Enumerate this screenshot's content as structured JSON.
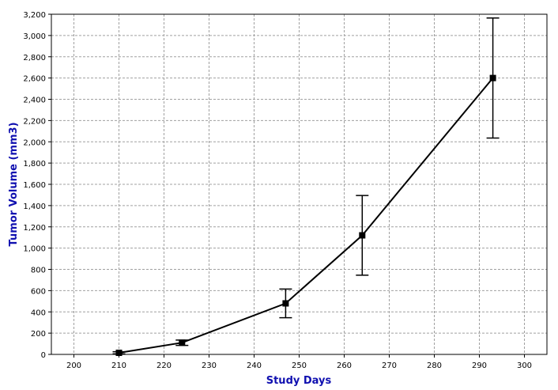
{
  "chart_data": {
    "type": "line",
    "title": "",
    "xlabel": "Study Days",
    "ylabel": "Tumor Volume (mm3)",
    "xlim": [
      195,
      305
    ],
    "ylim": [
      0,
      3200
    ],
    "x_ticks": [
      200,
      210,
      220,
      230,
      240,
      250,
      260,
      270,
      280,
      290,
      300
    ],
    "y_ticks": [
      0,
      200,
      400,
      600,
      800,
      1000,
      1200,
      1400,
      1600,
      1800,
      2000,
      2200,
      2400,
      2600,
      2800,
      3000,
      3200
    ],
    "x_tick_labels": [
      "200",
      "210",
      "220",
      "230",
      "240",
      "250",
      "260",
      "270",
      "280",
      "290",
      "300"
    ],
    "y_tick_labels": [
      "0",
      "200",
      "400",
      "600",
      "800",
      "1,000",
      "1,200",
      "1,400",
      "1,600",
      "1,800",
      "2,000",
      "2,200",
      "2,400",
      "2,600",
      "2,800",
      "3,000",
      "3,200"
    ],
    "grid": true,
    "series": [
      {
        "x": [
          210,
          224,
          247,
          264,
          293
        ],
        "y": [
          15,
          110,
          480,
          1120,
          2600
        ],
        "error": [
          10,
          25,
          135,
          375,
          565
        ]
      }
    ]
  },
  "colors": {
    "axis_title": "#1010b0",
    "line": "#000000",
    "grid": "#a0a0a0"
  }
}
